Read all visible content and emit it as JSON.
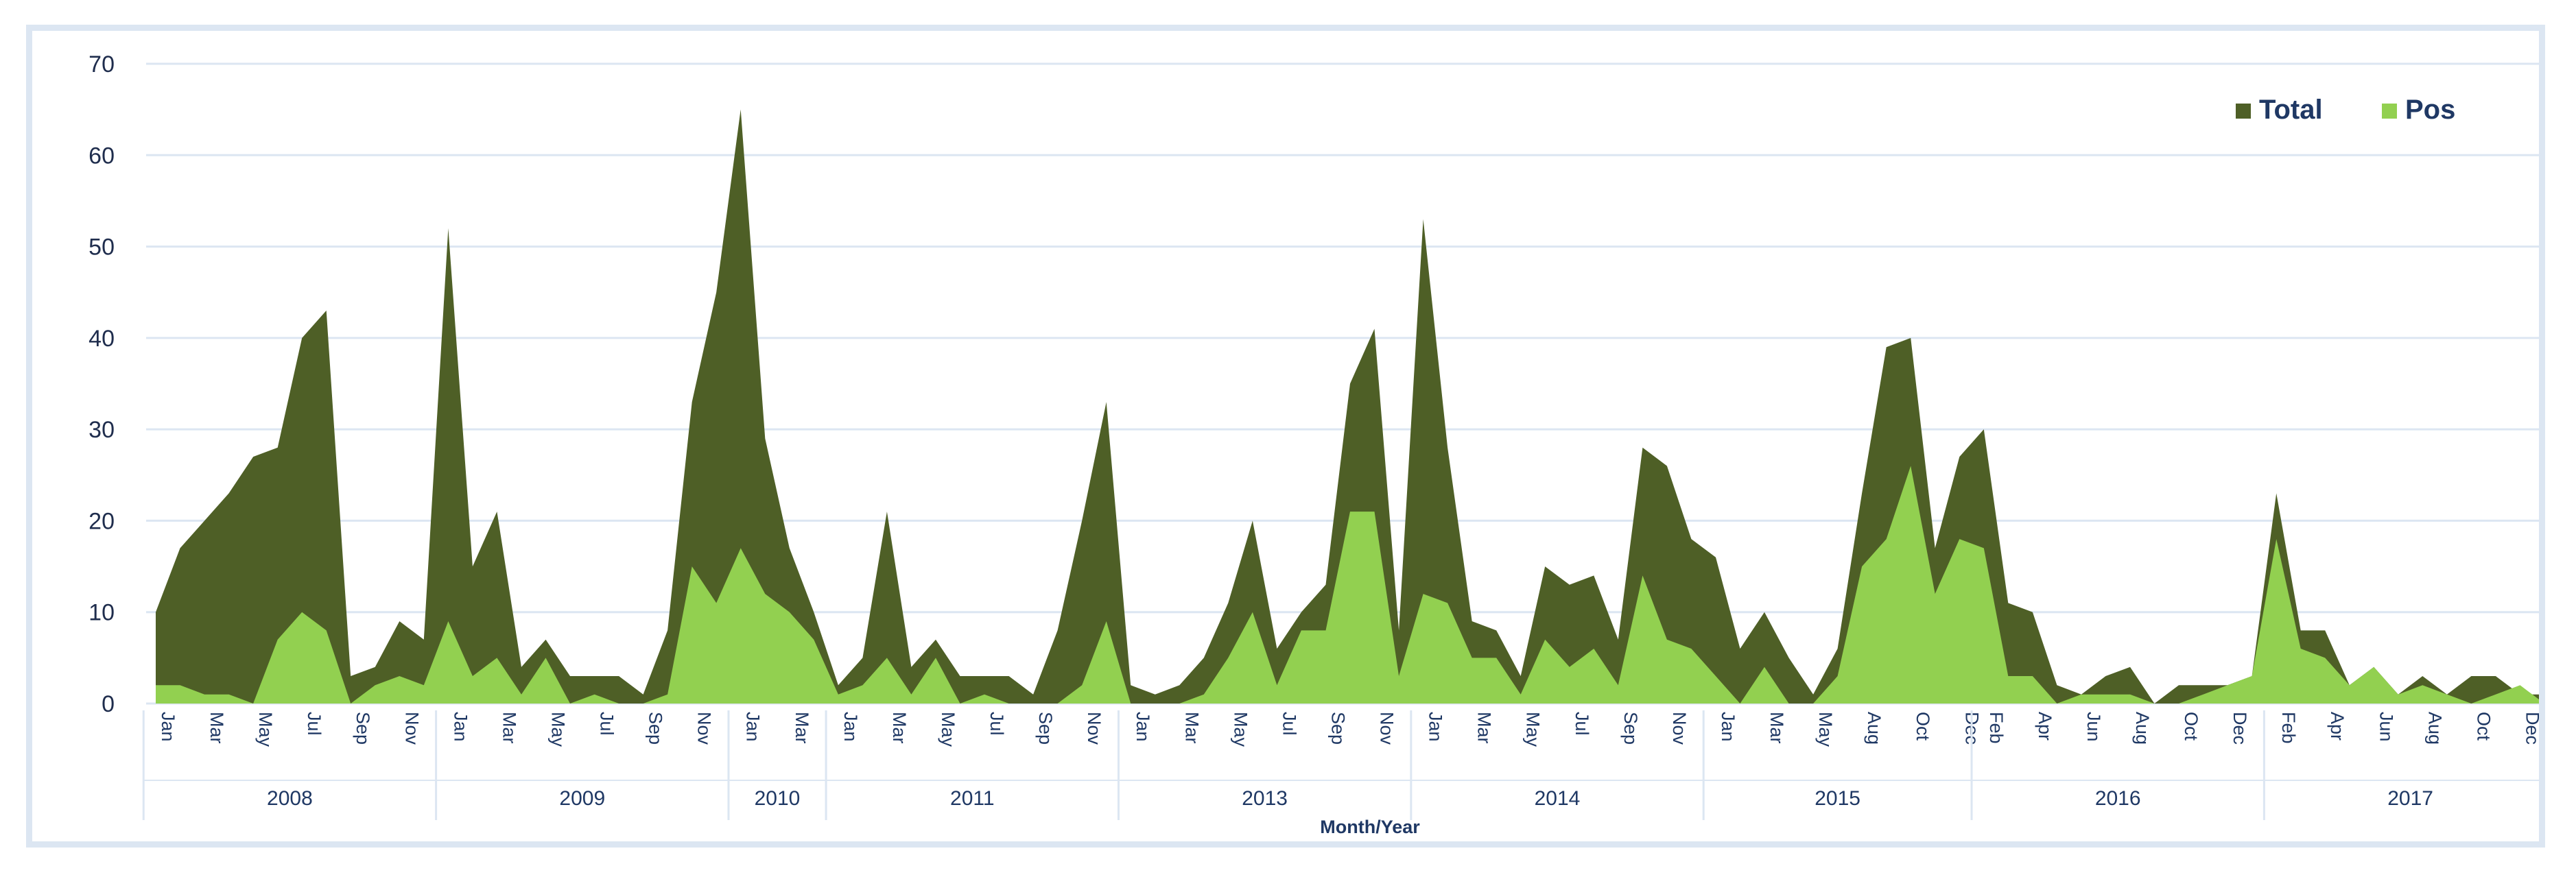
{
  "chart_data": {
    "type": "area",
    "xlabel": "Month/Year",
    "ylim": [
      0,
      70
    ],
    "yticks": [
      0,
      10,
      20,
      30,
      40,
      50,
      60,
      70
    ],
    "grid": "horizontal",
    "legend_position": "top-right",
    "colors": {
      "total": "#4e5f26",
      "pos": "#92d050",
      "grid": "#dce6f2",
      "axis_text": "#1f3864"
    },
    "tick_labels": [
      "Jan",
      "Mar",
      "May",
      "Jul",
      "Sep",
      "Nov",
      "Jan",
      "Mar",
      "May",
      "Jul",
      "Sep",
      "Nov",
      "Jan",
      "Mar",
      "Jan",
      "Mar",
      "May",
      "Jul",
      "Sep",
      "Nov",
      "Jan",
      "Mar",
      "May",
      "Jul",
      "Sep",
      "Nov",
      "Jan",
      "Mar",
      "May",
      "Jul",
      "Sep",
      "Nov",
      "Jan",
      "Mar",
      "May",
      "Aug",
      "Oct",
      "Dec",
      "Feb",
      "Apr",
      "Jun",
      "Aug",
      "Oct",
      "Dec",
      "Feb",
      "Apr",
      "Jun",
      "Aug",
      "Oct",
      "Dec"
    ],
    "years": [
      {
        "label": "2008",
        "months": 12
      },
      {
        "label": "2009",
        "months": 12
      },
      {
        "label": "2010",
        "months": 4
      },
      {
        "label": "2011",
        "months": 12
      },
      {
        "label": "2013",
        "months": 12
      },
      {
        "label": "2014",
        "months": 12
      },
      {
        "label": "2015",
        "months": 11
      },
      {
        "label": "2016",
        "months": 12
      },
      {
        "label": "2017",
        "months": 12
      }
    ],
    "series": [
      {
        "name": "Total",
        "values": [
          10,
          17,
          20,
          23,
          27,
          28,
          40,
          43,
          3,
          4,
          9,
          7,
          52,
          15,
          21,
          4,
          7,
          3,
          3,
          3,
          1,
          8,
          33,
          45,
          65,
          29,
          17,
          10,
          2,
          5,
          21,
          4,
          7,
          3,
          3,
          3,
          1,
          8,
          20,
          33,
          2,
          1,
          2,
          5,
          11,
          20,
          6,
          10,
          13,
          35,
          41,
          8,
          53,
          28,
          9,
          8,
          3,
          15,
          13,
          14,
          7,
          28,
          26,
          18,
          16,
          6,
          10,
          5,
          1,
          6,
          23,
          39,
          40,
          17,
          27,
          30,
          11,
          10,
          2,
          1,
          3,
          4,
          0,
          2,
          2,
          2,
          3,
          23,
          8,
          8,
          2,
          4,
          1,
          3,
          1,
          3,
          3,
          1,
          1
        ]
      },
      {
        "name": "Pos",
        "values": [
          2,
          2,
          1,
          1,
          0,
          7,
          10,
          8,
          0,
          2,
          3,
          2,
          9,
          3,
          5,
          1,
          5,
          0,
          1,
          0,
          0,
          1,
          15,
          11,
          17,
          12,
          10,
          7,
          1,
          2,
          5,
          1,
          5,
          0,
          1,
          0,
          0,
          0,
          2,
          9,
          0,
          0,
          0,
          1,
          5,
          10,
          2,
          8,
          8,
          21,
          21,
          3,
          12,
          11,
          5,
          5,
          1,
          7,
          4,
          6,
          2,
          14,
          7,
          6,
          3,
          0,
          4,
          0,
          0,
          3,
          15,
          18,
          26,
          12,
          18,
          17,
          3,
          3,
          0,
          1,
          1,
          1,
          0,
          0,
          1,
          2,
          3,
          18,
          6,
          5,
          2,
          4,
          1,
          2,
          1,
          0,
          1,
          2,
          0
        ]
      }
    ]
  }
}
